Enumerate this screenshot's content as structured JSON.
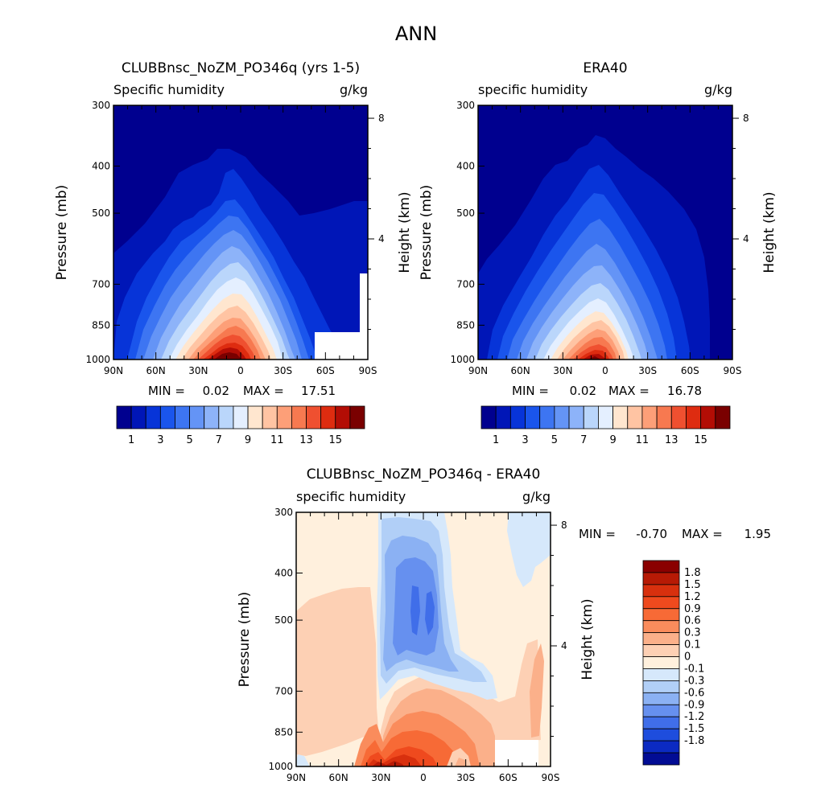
{
  "figure_title": "ANN",
  "chart_data": [
    {
      "type": "heatmap",
      "title": "CLUBBnsc_NoZM_PO346q (yrs 1-5)",
      "left_label": "Specific humidity",
      "right_label": "g/kg",
      "xlabel": "",
      "ylabel": "Pressure (mb)",
      "y2label": "Height (km)",
      "x_ticks": [
        "90N",
        "60N",
        "30N",
        "0",
        "30S",
        "60S",
        "90S"
      ],
      "y_ticks": [
        "300",
        "400",
        "500",
        "700",
        "850",
        "1000"
      ],
      "y2_ticks": [
        "8",
        "4"
      ],
      "ylim": [
        300,
        1000
      ],
      "y_scale": "log",
      "min_label": "MIN =",
      "min_value": "0.02",
      "max_label": "MAX =",
      "max_value": "17.51",
      "colorbar_orientation": "horizontal",
      "colorbar_labels": [
        "1",
        "3",
        "5",
        "7",
        "9",
        "11",
        "13",
        "15"
      ],
      "colorbar_levels": [
        1,
        2,
        3,
        4,
        5,
        6,
        7,
        8,
        9,
        10,
        11,
        12,
        13,
        14,
        15,
        16
      ],
      "colorbar_colors": [
        "#00008f",
        "#0016b7",
        "#0734d8",
        "#1a55ec",
        "#3d75f2",
        "#6494f6",
        "#8db3f9",
        "#bad6fb",
        "#e4efff",
        "#ffe6cf",
        "#ffc4a3",
        "#fd9f78",
        "#f77950",
        "#ef5030",
        "#de2c10",
        "#b30d05",
        "#7a0000"
      ],
      "missing_region": "white box near 60S–80S below ~900 mb"
    },
    {
      "type": "heatmap",
      "title": "ERA40",
      "left_label": "specific humidity",
      "right_label": "g/kg",
      "xlabel": "",
      "ylabel": "Pressure (mb)",
      "y2label": "Height (km)",
      "x_ticks": [
        "90N",
        "60N",
        "30N",
        "0",
        "30S",
        "60S",
        "90S"
      ],
      "y_ticks": [
        "300",
        "400",
        "500",
        "700",
        "850",
        "1000"
      ],
      "y2_ticks": [
        "8",
        "4"
      ],
      "ylim": [
        300,
        1000
      ],
      "y_scale": "log",
      "min_label": "MIN =",
      "min_value": "0.02",
      "max_label": "MAX =",
      "max_value": "16.78",
      "colorbar_orientation": "horizontal",
      "colorbar_labels": [
        "1",
        "3",
        "5",
        "7",
        "9",
        "11",
        "13",
        "15"
      ],
      "colorbar_levels": [
        1,
        2,
        3,
        4,
        5,
        6,
        7,
        8,
        9,
        10,
        11,
        12,
        13,
        14,
        15,
        16
      ],
      "colorbar_colors": [
        "#00008f",
        "#0016b7",
        "#0734d8",
        "#1a55ec",
        "#3d75f2",
        "#6494f6",
        "#8db3f9",
        "#bad6fb",
        "#e4efff",
        "#ffe6cf",
        "#ffc4a3",
        "#fd9f78",
        "#f77950",
        "#ef5030",
        "#de2c10",
        "#b30d05",
        "#7a0000"
      ]
    },
    {
      "type": "heatmap",
      "title": "CLUBBnsc_NoZM_PO346q - ERA40",
      "left_label": "specific humidity",
      "right_label": "g/kg",
      "xlabel": "",
      "ylabel": "Pressure (mb)",
      "y2label": "Height (km)",
      "x_ticks": [
        "90N",
        "60N",
        "30N",
        "0",
        "30S",
        "60S",
        "90S"
      ],
      "y_ticks": [
        "300",
        "400",
        "500",
        "700",
        "850",
        "1000"
      ],
      "y2_ticks": [
        "8",
        "4"
      ],
      "ylim": [
        300,
        1000
      ],
      "y_scale": "log",
      "min_label": "MIN =",
      "min_value": "-0.70",
      "max_label": "MAX =",
      "max_value": "1.95",
      "colorbar_orientation": "vertical",
      "colorbar_labels": [
        "1.8",
        "1.5",
        "1.2",
        "0.9",
        "0.6",
        "0.3",
        "0.1",
        "0",
        "-0.1",
        "-0.3",
        "-0.6",
        "-0.9",
        "-1.2",
        "-1.5",
        "-1.8"
      ],
      "colorbar_colors": [
        "#8a0000",
        "#b71a05",
        "#d8300e",
        "#ef4a1e",
        "#f76a36",
        "#fa8c5c",
        "#fbb08a",
        "#fdd0b4",
        "#fff0dd",
        "#d6e8fb",
        "#b1cff7",
        "#8bb1f3",
        "#6690ef",
        "#406ee9",
        "#1e4ddd",
        "#0b2ac2",
        "#020c94"
      ],
      "missing_region": "white box near 60S–80S below ~930 mb"
    }
  ]
}
